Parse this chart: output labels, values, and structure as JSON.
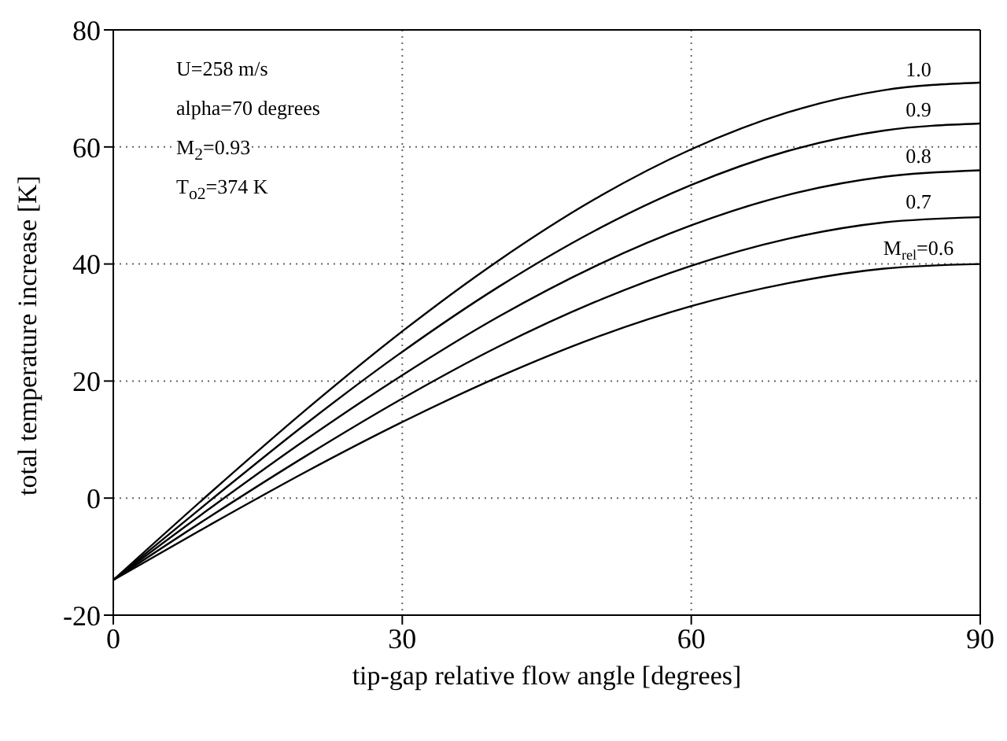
{
  "chart_data": {
    "type": "line",
    "xlabel": "tip-gap relative flow angle  [degrees]",
    "ylabel": "total temperature increase  [K]",
    "annotations": [
      "U=258 m/s",
      "alpha=70 degrees",
      "M$_{2}$=0.93",
      "T$_{o2}$=374 K"
    ],
    "x": [
      0,
      10,
      20,
      30,
      40,
      50,
      60,
      70,
      80,
      90
    ],
    "series": [
      {
        "name": "1.0",
        "color": "#000000",
        "values": [
          -14,
          0.8,
          15.1,
          28.5,
          40.6,
          51.1,
          59.6,
          65.9,
          69.7,
          71
        ]
      },
      {
        "name": "0.9",
        "color": "#000000",
        "values": [
          -14,
          -0.5,
          12.7,
          25,
          36.1,
          45.7,
          53.5,
          59.3,
          62.8,
          64
        ]
      },
      {
        "name": "0.8",
        "color": "#000000",
        "values": [
          -14,
          -1.8,
          10,
          21,
          31,
          39.6,
          46.6,
          51.8,
          54.9,
          56
        ]
      },
      {
        "name": "0.7",
        "color": "#000000",
        "values": [
          -14,
          -3.2,
          7.2,
          17,
          25.9,
          33.5,
          39.7,
          44.3,
          47.1,
          48
        ]
      },
      {
        "name": "M$_{rel}$=0.6",
        "color": "#000000",
        "values": [
          -14,
          -4.6,
          4.5,
          13,
          20.7,
          27.4,
          32.8,
          36.7,
          39.2,
          40
        ]
      }
    ],
    "xlim": [
      0,
      90
    ],
    "xticks": [
      0,
      30,
      60,
      90
    ],
    "ylim": [
      -20,
      80
    ],
    "yticks": [
      -20,
      0,
      20,
      40,
      60,
      80
    ],
    "grid": true,
    "legend": false,
    "marker": "none",
    "line_style": "solid"
  }
}
